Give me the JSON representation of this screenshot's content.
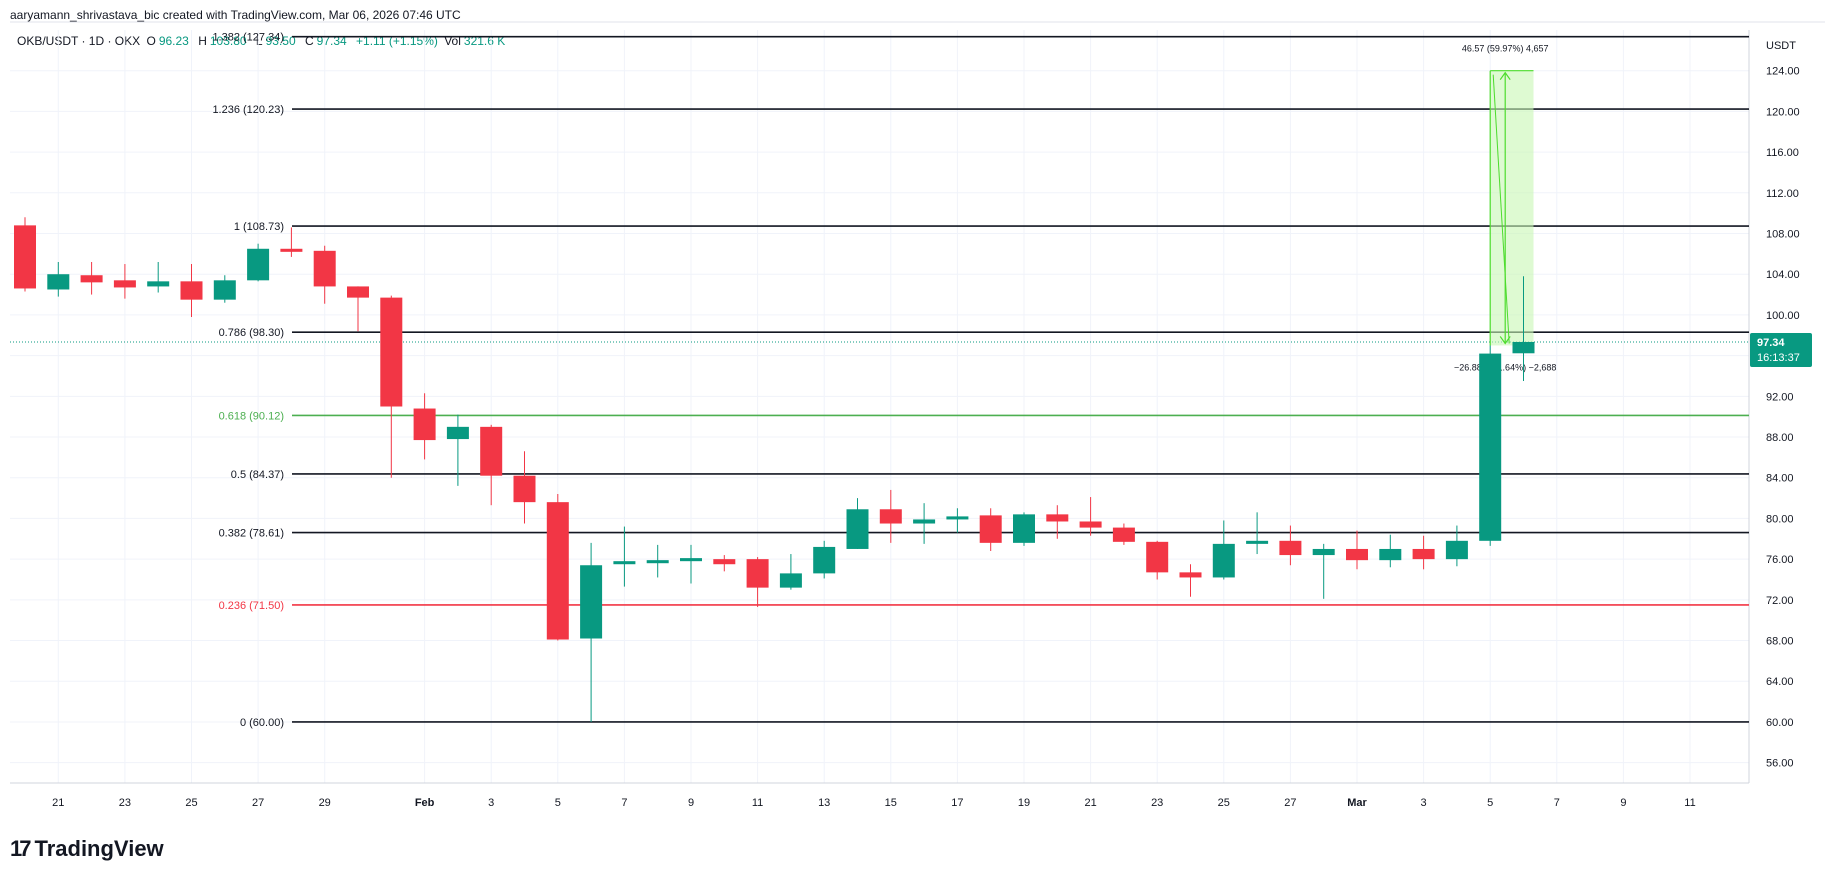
{
  "header": {
    "attribution": "aaryamann_shrivastava_bic created with TradingView.com, Mar 06, 2026 07:46 UTC",
    "brand": "TradingView"
  },
  "legend": {
    "symbol": "OKB/USDT · 1D · OKX",
    "o_label": "O",
    "o": "96.23",
    "h_label": "H",
    "h": "103.80",
    "l_label": "L",
    "l": "93.50",
    "c_label": "C",
    "c": "97.34",
    "change": "+1.11 (+1.15%)",
    "vol_label": "Vol",
    "vol": "321.6 K"
  },
  "colors": {
    "up": "#089981",
    "down": "#f23645",
    "fib_green": "#4caf50",
    "fib_red": "#f23645",
    "fib_black": "#131722",
    "measure_fill": "#c8f7b4",
    "measure_line": "#4cdc2c"
  },
  "chart_data": {
    "type": "candlestick",
    "currency": "USDT",
    "ylim": [
      54,
      128
    ],
    "y_ticks": [
      56,
      60,
      64,
      68,
      72,
      76,
      80,
      84,
      88,
      92,
      96,
      100,
      104,
      108,
      112,
      116,
      120,
      124
    ],
    "x_ticks": [
      {
        "i": 1,
        "label": "21"
      },
      {
        "i": 3,
        "label": "23"
      },
      {
        "i": 5,
        "label": "25"
      },
      {
        "i": 7,
        "label": "27"
      },
      {
        "i": 9,
        "label": "29"
      },
      {
        "i": 12,
        "label": "Feb"
      },
      {
        "i": 14,
        "label": "3"
      },
      {
        "i": 16,
        "label": "5"
      },
      {
        "i": 18,
        "label": "7"
      },
      {
        "i": 20,
        "label": "9"
      },
      {
        "i": 22,
        "label": "11"
      },
      {
        "i": 24,
        "label": "13"
      },
      {
        "i": 26,
        "label": "15"
      },
      {
        "i": 28,
        "label": "17"
      },
      {
        "i": 30,
        "label": "19"
      },
      {
        "i": 32,
        "label": "21"
      },
      {
        "i": 34,
        "label": "23"
      },
      {
        "i": 36,
        "label": "25"
      },
      {
        "i": 38,
        "label": "27"
      },
      {
        "i": 40,
        "label": "Mar"
      },
      {
        "i": 42,
        "label": "3"
      },
      {
        "i": 44,
        "label": "5"
      },
      {
        "i": 46,
        "label": "7"
      },
      {
        "i": 48,
        "label": "9"
      },
      {
        "i": 50,
        "label": "11"
      }
    ],
    "candles": [
      {
        "o": 108.8,
        "h": 109.6,
        "l": 102.3,
        "c": 102.6
      },
      {
        "o": 102.5,
        "h": 105.2,
        "l": 101.8,
        "c": 104.0
      },
      {
        "o": 103.9,
        "h": 105.2,
        "l": 102.0,
        "c": 103.2
      },
      {
        "o": 103.4,
        "h": 105.0,
        "l": 101.6,
        "c": 102.7
      },
      {
        "o": 102.8,
        "h": 105.2,
        "l": 102.2,
        "c": 103.3
      },
      {
        "o": 103.3,
        "h": 105.0,
        "l": 99.8,
        "c": 101.5
      },
      {
        "o": 101.5,
        "h": 103.9,
        "l": 101.2,
        "c": 103.4
      },
      {
        "o": 103.4,
        "h": 107.0,
        "l": 103.3,
        "c": 106.5
      },
      {
        "o": 106.5,
        "h": 108.6,
        "l": 105.7,
        "c": 106.2
      },
      {
        "o": 106.3,
        "h": 106.8,
        "l": 101.1,
        "c": 102.8
      },
      {
        "o": 102.8,
        "h": 102.8,
        "l": 98.4,
        "c": 101.7
      },
      {
        "o": 101.7,
        "h": 101.9,
        "l": 84.0,
        "c": 91.0
      },
      {
        "o": 90.8,
        "h": 92.3,
        "l": 85.8,
        "c": 87.7
      },
      {
        "o": 87.8,
        "h": 90.2,
        "l": 83.2,
        "c": 89.0
      },
      {
        "o": 89.0,
        "h": 89.2,
        "l": 81.3,
        "c": 84.2
      },
      {
        "o": 84.2,
        "h": 86.6,
        "l": 79.5,
        "c": 81.6
      },
      {
        "o": 81.6,
        "h": 82.4,
        "l": 68.0,
        "c": 68.1
      },
      {
        "o": 68.2,
        "h": 77.6,
        "l": 60.0,
        "c": 75.4
      },
      {
        "o": 75.5,
        "h": 79.2,
        "l": 73.3,
        "c": 75.8
      },
      {
        "o": 75.6,
        "h": 77.4,
        "l": 74.2,
        "c": 75.9
      },
      {
        "o": 75.8,
        "h": 77.4,
        "l": 73.6,
        "c": 76.1
      },
      {
        "o": 76.0,
        "h": 76.4,
        "l": 74.8,
        "c": 75.5
      },
      {
        "o": 76.0,
        "h": 76.2,
        "l": 71.3,
        "c": 73.2
      },
      {
        "o": 73.2,
        "h": 76.5,
        "l": 73.0,
        "c": 74.6
      },
      {
        "o": 74.6,
        "h": 77.8,
        "l": 74.1,
        "c": 77.2
      },
      {
        "o": 77.0,
        "h": 82.0,
        "l": 77.0,
        "c": 80.9
      },
      {
        "o": 80.9,
        "h": 82.8,
        "l": 77.6,
        "c": 79.5
      },
      {
        "o": 79.5,
        "h": 81.5,
        "l": 77.5,
        "c": 79.9
      },
      {
        "o": 79.9,
        "h": 81.0,
        "l": 78.6,
        "c": 80.2
      },
      {
        "o": 80.3,
        "h": 81.0,
        "l": 76.8,
        "c": 77.6
      },
      {
        "o": 77.6,
        "h": 80.6,
        "l": 77.3,
        "c": 80.4
      },
      {
        "o": 80.4,
        "h": 81.3,
        "l": 78.0,
        "c": 79.7
      },
      {
        "o": 79.7,
        "h": 82.1,
        "l": 78.3,
        "c": 79.1
      },
      {
        "o": 79.1,
        "h": 79.5,
        "l": 77.4,
        "c": 77.7
      },
      {
        "o": 77.7,
        "h": 77.8,
        "l": 74.0,
        "c": 74.7
      },
      {
        "o": 74.7,
        "h": 75.5,
        "l": 72.3,
        "c": 74.2
      },
      {
        "o": 74.2,
        "h": 79.8,
        "l": 74.0,
        "c": 77.5
      },
      {
        "o": 77.5,
        "h": 80.6,
        "l": 76.5,
        "c": 77.8
      },
      {
        "o": 77.8,
        "h": 79.3,
        "l": 75.4,
        "c": 76.4
      },
      {
        "o": 76.4,
        "h": 77.5,
        "l": 72.1,
        "c": 77.0
      },
      {
        "o": 77.0,
        "h": 78.8,
        "l": 75.0,
        "c": 75.9
      },
      {
        "o": 75.9,
        "h": 78.4,
        "l": 75.2,
        "c": 77.0
      },
      {
        "o": 77.0,
        "h": 78.3,
        "l": 75.0,
        "c": 76.0
      },
      {
        "o": 76.0,
        "h": 79.3,
        "l": 75.3,
        "c": 77.8
      },
      {
        "o": 77.8,
        "h": 97.0,
        "l": 77.3,
        "c": 96.2
      },
      {
        "o": 96.23,
        "h": 103.8,
        "l": 93.5,
        "c": 97.34
      }
    ],
    "fib_levels": [
      {
        "ratio": 1.382,
        "price": 127.34,
        "label": "1.382 (127.34)",
        "color": "#131722"
      },
      {
        "ratio": 1.236,
        "price": 120.23,
        "label": "1.236 (120.23)",
        "color": "#131722"
      },
      {
        "ratio": 1,
        "price": 108.73,
        "label": "1 (108.73)",
        "color": "#131722"
      },
      {
        "ratio": 0.786,
        "price": 98.3,
        "label": "0.786 (98.30)",
        "color": "#131722"
      },
      {
        "ratio": 0.618,
        "price": 90.12,
        "label": "0.618 (90.12)",
        "color": "#4caf50"
      },
      {
        "ratio": 0.5,
        "price": 84.37,
        "label": "0.5 (84.37)",
        "color": "#131722"
      },
      {
        "ratio": 0.382,
        "price": 78.61,
        "label": "0.382 (78.61)",
        "color": "#131722"
      },
      {
        "ratio": 0.236,
        "price": 71.5,
        "label": "0.236 (71.50)",
        "color": "#f23645"
      },
      {
        "ratio": 0,
        "price": 60.0,
        "label": "0 (60.00)",
        "color": "#131722"
      }
    ],
    "measure": {
      "i_start": 44,
      "i_end": 45,
      "top": 124.0,
      "bottom": 97.0,
      "up_label": "46.57 (59.97%) 4,657",
      "down_label": "−26.88 (−21.64%) −2,688"
    },
    "last_price": {
      "value": 97.34,
      "label": "97.34",
      "countdown": "16:13:37"
    }
  }
}
